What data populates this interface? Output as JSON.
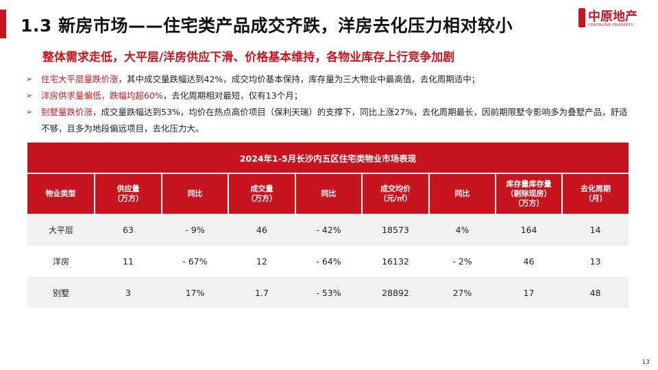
{
  "title": "1.3 新房市场——住宅类产品成交齐跌，洋房去化压力相对较小",
  "logo": {
    "text": "中原地产",
    "sub": "CENTALINE PROPERTY"
  },
  "subtitle": "整体需求走低，大平层/洋房供应下滑、价格基本维持，各物业库存上行竞争加剧",
  "bullets": [
    {
      "highlight": "住宅大平层量跌价涨",
      "rest": "，其中成交量跌幅达到42%，成交均价基本保持，库存量为三大物业中最高值，去化周期适中；"
    },
    {
      "highlight": "洋房供求量偏低，跌幅均超60%",
      "rest": "，去化周期相对最短，仅有13个月；"
    },
    {
      "highlight": "别墅量跌价涨",
      "rest": "，成交量跌幅达到53%，均价在热点高价项目（保利天瑞）的支撑下，同比上涨27%，去化周期最长，因前期限墅令影响多为叠墅产品，舒适不够，且多为地段偏远项目，去化压力大。"
    }
  ],
  "table": {
    "caption": "2024年1-5月长沙内五区住宅类物业市场表现",
    "headers": [
      [
        "物业类型"
      ],
      [
        "供应量",
        "（万方）"
      ],
      [
        "同比"
      ],
      [
        "成交量",
        "（万方）"
      ],
      [
        "同比"
      ],
      [
        "成交均价",
        "（元/㎡）"
      ],
      [
        "同比"
      ],
      [
        "库存量库存量",
        "（剔除现房）",
        "（万方）"
      ],
      [
        "去化周期",
        "（月）"
      ]
    ],
    "rows": [
      {
        "type": "大平层",
        "supply": "63",
        "supply_yoy": "- 9%",
        "deal": "46",
        "deal_yoy": "- 42%",
        "price": "18573",
        "price_yoy": "4%",
        "inventory": "164",
        "cycle": "14"
      },
      {
        "type": "洋房",
        "supply": "11",
        "supply_yoy": "- 67%",
        "deal": "12",
        "deal_yoy": "- 64%",
        "price": "16132",
        "price_yoy": "- 2%",
        "inventory": "46",
        "cycle": "13"
      },
      {
        "type": "别墅",
        "supply": "3",
        "supply_yoy": "17%",
        "deal": "1.7",
        "deal_yoy": "- 53%",
        "price": "28892",
        "price_yoy": "27%",
        "inventory": "17",
        "cycle": "48"
      }
    ]
  },
  "colors": {
    "accent": "#c8141e",
    "negative": "#2e9b3e",
    "positive": "#c8141e"
  },
  "page_number": "13"
}
